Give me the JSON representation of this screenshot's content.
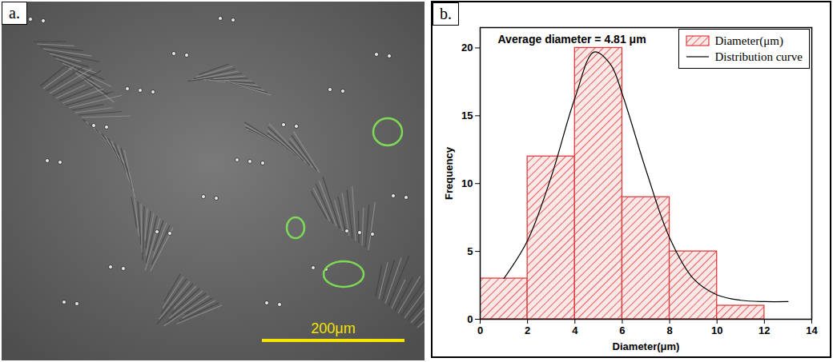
{
  "chart_data": [
    {
      "type": "image",
      "panel": "a.",
      "scale_bar_label": "200μm"
    },
    {
      "type": "histogram",
      "panel": "b.",
      "annotation": "Average diameter = 4.81 μm",
      "x_label": "Diameter(μm)",
      "y_label": "Frequency",
      "name": "Diameter(μm)",
      "color": "#e03c3c",
      "bins": [
        0,
        2,
        4,
        6,
        8,
        10,
        12
      ],
      "values": [
        3,
        12,
        20,
        9,
        5,
        1
      ],
      "series": [
        {
          "name": "Distribution curve",
          "type": "line",
          "color": "#000000",
          "x": [
            1,
            2,
            3,
            4,
            4.81,
            5.5,
            6,
            7,
            8,
            9,
            10,
            11,
            12,
            13
          ],
          "values": [
            3.0,
            5.8,
            10.5,
            16.3,
            19.7,
            18.8,
            16.6,
            11.0,
            6.0,
            3.0,
            1.8,
            1.4,
            1.3,
            1.3
          ]
        }
      ],
      "xlim": [
        0,
        14
      ],
      "xticks": [
        0,
        2,
        4,
        6,
        8,
        10,
        12,
        14
      ],
      "ylim": [
        0,
        21.5
      ],
      "yticks": [
        0,
        5,
        10,
        15,
        20
      ],
      "legend": "top-right"
    }
  ]
}
